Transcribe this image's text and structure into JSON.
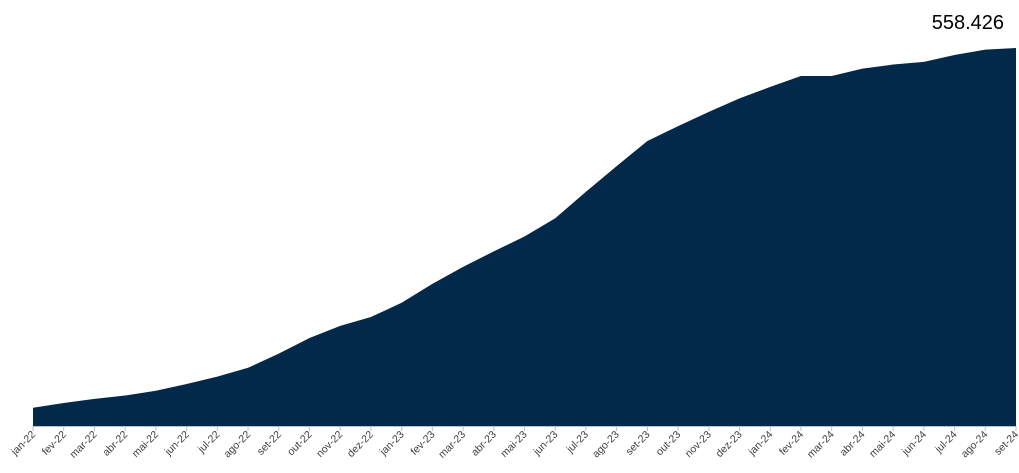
{
  "chart_data": {
    "type": "area",
    "title": "",
    "xlabel": "",
    "ylabel": "",
    "fill_color": "#03294a",
    "axis_color": "#bfbfbf",
    "grid": false,
    "legend": "none",
    "ylim": [
      0,
      558426
    ],
    "categories": [
      "jan-22",
      "fev-22",
      "mar-22",
      "abr-22",
      "mai-22",
      "jun-22",
      "jul-22",
      "ago-22",
      "set-22",
      "out-22",
      "nov-22",
      "dez-22",
      "jan-23",
      "fev-23",
      "mar-23",
      "abr-23",
      "mai-23",
      "jun-23",
      "jul-23",
      "ago-23",
      "set-23",
      "out-23",
      "nov-23",
      "dez-23",
      "jan-24",
      "fev-24",
      "mar-24",
      "abr-24",
      "mai-24",
      "jun-24",
      "jul-24",
      "ago-24",
      "set-24"
    ],
    "values": [
      27000,
      34000,
      40000,
      45000,
      52000,
      62000,
      73000,
      86000,
      107000,
      130000,
      148000,
      161000,
      182000,
      210000,
      235000,
      258000,
      280000,
      307000,
      346000,
      384000,
      421000,
      443000,
      464000,
      484000,
      501000,
      517000,
      517000,
      528000,
      534000,
      538000,
      548000,
      556000,
      558426
    ],
    "last_value_label": "558.426"
  }
}
